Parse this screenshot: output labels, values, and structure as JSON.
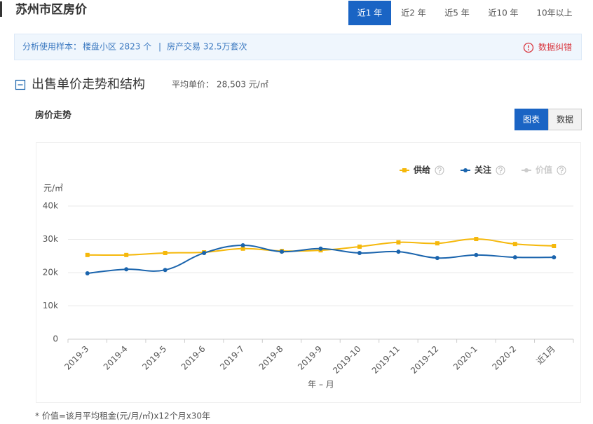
{
  "header": {
    "title": "苏州市区房价",
    "tabs": [
      "近1 年",
      "近2 年",
      "近5 年",
      "近10 年",
      "10年以上"
    ],
    "active_tab": 0
  },
  "info": {
    "sample_label": "分析使用样本：",
    "sample_text": "楼盘小区 2823 个",
    "separator": "|",
    "trade_text": "房产交易 32.5万套次",
    "report": "数据纠错"
  },
  "section": {
    "title": "出售单价走势和结构",
    "avg_label": "平均单价：",
    "avg_value": "28,503 元/㎡"
  },
  "panel": {
    "title": "房价走势",
    "toggles": [
      "图表",
      "数据"
    ],
    "active_toggle": 0
  },
  "footnote": "* 价值=该月平均租金(元/月/㎡)x12个月x30年",
  "chart_data": {
    "type": "line",
    "y_unit": "元/㎡",
    "xlabel": "年 – 月",
    "categories": [
      "2019-3",
      "2019-4",
      "2019-5",
      "2019-6",
      "2019-7",
      "2019-8",
      "2019-9",
      "2019-10",
      "2019-11",
      "2019-12",
      "2020-1",
      "2020-2",
      "近1月"
    ],
    "series": [
      {
        "name": "供给",
        "color": "#f5b80b",
        "marker": "square",
        "values": [
          25300,
          25300,
          25900,
          26100,
          27200,
          26500,
          26700,
          27800,
          29100,
          28800,
          30100,
          28600,
          28000
        ]
      },
      {
        "name": "关注",
        "color": "#1a64ad",
        "marker": "circle",
        "values": [
          19800,
          21000,
          20800,
          25900,
          28200,
          26300,
          27200,
          25900,
          26300,
          24400,
          25300,
          24600,
          24600
        ]
      }
    ],
    "hidden_series": [
      {
        "name": "价值",
        "color": "#cccccc"
      }
    ],
    "ylim": [
      0,
      40000
    ],
    "yticks": [
      0,
      {
        "value": 10000,
        "label": "10k"
      },
      {
        "value": 20000,
        "label": "20k"
      },
      {
        "value": 30000,
        "label": "30k"
      },
      {
        "value": 40000,
        "label": "40k"
      }
    ],
    "grid": true
  }
}
